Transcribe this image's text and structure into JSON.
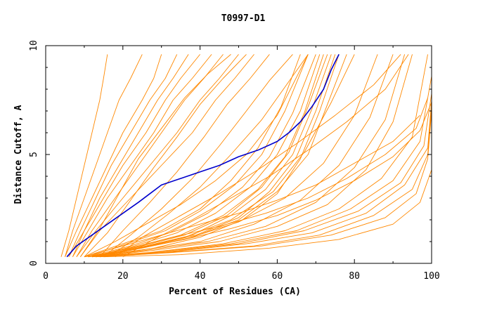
{
  "chart_data": {
    "type": "line",
    "title": "T0997-D1",
    "xlabel": "Percent of Residues (CA)",
    "ylabel": "Distance Cutoff, A",
    "xlim": [
      0,
      100
    ],
    "ylim": [
      0,
      10
    ],
    "x_ticks": [
      "0",
      "20",
      "40",
      "60",
      "80",
      "100"
    ],
    "y_ticks": [
      "0",
      "5",
      "10"
    ],
    "grid": false,
    "colors": {
      "highlight": "#0000cc",
      "others": "#ff8800",
      "frame": "#000000"
    },
    "highlight_series": {
      "x": [
        5.5,
        8,
        12,
        16,
        20,
        24,
        27,
        30,
        35,
        40,
        45,
        50,
        55,
        60,
        63,
        66,
        69,
        72,
        74,
        76
      ],
      "y": [
        0.3,
        0.8,
        1.3,
        1.8,
        2.3,
        2.8,
        3.2,
        3.6,
        3.9,
        4.2,
        4.5,
        4.9,
        5.2,
        5.6,
        6.0,
        6.5,
        7.2,
        8.0,
        8.9,
        9.6
      ]
    },
    "other_series": [
      {
        "x": [
          4,
          6,
          8,
          10,
          12,
          14,
          15,
          16
        ],
        "y": [
          0.3,
          1.5,
          3.0,
          4.5,
          6.0,
          7.5,
          8.5,
          9.6
        ]
      },
      {
        "x": [
          5,
          7,
          10,
          13,
          16,
          19,
          22,
          25
        ],
        "y": [
          0.3,
          1.5,
          3.0,
          4.5,
          6.0,
          7.5,
          8.5,
          9.6
        ]
      },
      {
        "x": [
          5,
          8,
          12,
          16,
          20,
          25,
          28,
          30
        ],
        "y": [
          0.3,
          1.5,
          3.0,
          4.5,
          6.0,
          7.5,
          8.5,
          9.6
        ]
      },
      {
        "x": [
          6,
          9,
          13,
          17,
          22,
          27,
          31,
          34
        ],
        "y": [
          0.3,
          1.5,
          3.0,
          4.5,
          6.0,
          7.5,
          8.5,
          9.6
        ]
      },
      {
        "x": [
          6,
          10,
          14,
          19,
          24,
          29,
          33,
          37
        ],
        "y": [
          0.3,
          1.5,
          3.0,
          4.5,
          6.0,
          7.5,
          8.5,
          9.6
        ]
      },
      {
        "x": [
          7,
          10,
          15,
          20,
          26,
          31,
          35,
          40
        ],
        "y": [
          0.3,
          1.5,
          3.0,
          4.5,
          6.0,
          7.5,
          8.5,
          9.6
        ]
      },
      {
        "x": [
          7,
          11,
          16,
          22,
          28,
          33,
          38,
          43
        ],
        "y": [
          0.3,
          1.5,
          3.0,
          4.5,
          6.0,
          7.5,
          8.5,
          9.6
        ]
      },
      {
        "x": [
          8,
          12,
          18,
          24,
          30,
          36,
          41,
          46
        ],
        "y": [
          0.3,
          1.5,
          3.0,
          4.5,
          6.0,
          7.5,
          8.5,
          9.6
        ]
      },
      {
        "x": [
          8,
          13,
          20,
          27,
          34,
          40,
          45,
          50
        ],
        "y": [
          0.3,
          1.5,
          3.0,
          4.5,
          6.0,
          7.5,
          8.5,
          9.6
        ]
      },
      {
        "x": [
          9,
          14,
          22,
          30,
          38,
          44,
          49,
          54
        ],
        "y": [
          0.3,
          1.5,
          3.0,
          4.5,
          6.0,
          7.5,
          8.5,
          9.6
        ]
      },
      {
        "x": [
          10,
          18,
          26,
          35,
          44,
          52,
          60,
          68
        ],
        "y": [
          0.3,
          1.0,
          1.8,
          2.7,
          3.8,
          5.0,
          6.8,
          9.6
        ]
      },
      {
        "x": [
          10,
          20,
          30,
          40,
          48,
          55,
          61,
          66
        ],
        "y": [
          0.3,
          0.9,
          1.5,
          2.5,
          3.8,
          5.3,
          7.2,
          9.6
        ]
      },
      {
        "x": [
          11,
          21,
          31,
          40,
          49,
          56,
          62,
          68
        ],
        "y": [
          0.3,
          0.9,
          1.5,
          2.4,
          3.6,
          5.0,
          7.0,
          9.6
        ]
      },
      {
        "x": [
          11,
          22,
          32,
          42,
          51,
          58,
          64,
          70
        ],
        "y": [
          0.3,
          0.8,
          1.4,
          2.3,
          3.5,
          4.9,
          6.9,
          9.6
        ]
      },
      {
        "x": [
          12,
          23,
          34,
          44,
          53,
          60,
          66,
          71
        ],
        "y": [
          0.3,
          0.8,
          1.4,
          2.3,
          3.5,
          5.0,
          7.0,
          9.6
        ]
      },
      {
        "x": [
          12,
          24,
          35,
          46,
          55,
          62,
          67,
          72
        ],
        "y": [
          0.3,
          0.8,
          1.3,
          2.2,
          3.4,
          4.9,
          6.9,
          9.6
        ]
      },
      {
        "x": [
          13,
          25,
          36,
          47,
          56,
          63,
          68,
          73
        ],
        "y": [
          0.3,
          0.8,
          1.3,
          2.2,
          3.5,
          5.1,
          7.2,
          9.6
        ]
      },
      {
        "x": [
          13,
          26,
          38,
          48,
          57,
          64,
          69,
          74
        ],
        "y": [
          0.3,
          0.8,
          1.3,
          2.2,
          3.4,
          5.0,
          7.1,
          9.6
        ]
      },
      {
        "x": [
          14,
          27,
          39,
          50,
          58,
          65,
          70,
          75
        ],
        "y": [
          0.3,
          0.8,
          1.3,
          2.1,
          3.3,
          4.9,
          7.0,
          9.6
        ]
      },
      {
        "x": [
          14,
          28,
          40,
          51,
          60,
          66,
          71,
          76
        ],
        "y": [
          0.3,
          0.7,
          1.2,
          2.0,
          3.2,
          4.8,
          7.0,
          9.6
        ]
      },
      {
        "x": [
          12,
          25,
          38,
          50,
          60,
          68,
          73,
          78
        ],
        "y": [
          0.3,
          0.7,
          1.2,
          2.0,
          3.3,
          5.0,
          7.3,
          9.6
        ]
      },
      {
        "x": [
          11,
          24,
          36,
          48,
          59,
          67,
          74,
          80
        ],
        "y": [
          0.3,
          0.7,
          1.2,
          2.0,
          3.3,
          5.1,
          7.4,
          9.6
        ]
      },
      {
        "x": [
          10,
          22,
          36,
          50,
          62,
          72,
          80,
          86
        ],
        "y": [
          0.3,
          0.6,
          1.1,
          1.9,
          3.0,
          4.6,
          6.8,
          9.6
        ]
      },
      {
        "x": [
          11,
          24,
          40,
          54,
          66,
          76,
          84,
          90
        ],
        "y": [
          0.3,
          0.6,
          1.0,
          1.8,
          2.9,
          4.5,
          6.7,
          9.6
        ]
      },
      {
        "x": [
          12,
          26,
          42,
          57,
          70,
          80,
          88,
          93
        ],
        "y": [
          0.3,
          0.6,
          1.0,
          1.7,
          2.8,
          4.4,
          6.6,
          9.6
        ]
      },
      {
        "x": [
          13,
          28,
          45,
          60,
          73,
          83,
          90,
          95
        ],
        "y": [
          0.3,
          0.6,
          1.0,
          1.7,
          2.7,
          4.3,
          6.5,
          9.6
        ]
      },
      {
        "x": [
          12,
          27,
          46,
          62,
          76,
          87,
          95,
          99
        ],
        "y": [
          0.3,
          0.5,
          0.9,
          1.5,
          2.5,
          3.9,
          5.8,
          9.6
        ]
      },
      {
        "x": [
          12,
          28,
          48,
          65,
          79,
          90,
          97,
          100
        ],
        "y": [
          0.3,
          0.5,
          0.9,
          1.5,
          2.5,
          3.8,
          5.6,
          8.6
        ]
      },
      {
        "x": [
          13,
          30,
          50,
          67,
          81,
          92,
          98,
          100
        ],
        "y": [
          0.3,
          0.5,
          0.9,
          1.5,
          2.4,
          3.7,
          5.4,
          7.8
        ]
      },
      {
        "x": [
          13,
          31,
          52,
          69,
          83,
          93,
          99,
          100
        ],
        "y": [
          0.3,
          0.5,
          0.9,
          1.4,
          2.3,
          3.6,
          5.3,
          7.5
        ]
      },
      {
        "x": [
          14,
          32,
          54,
          71,
          85,
          95,
          99,
          100
        ],
        "y": [
          0.3,
          0.5,
          0.8,
          1.3,
          2.2,
          3.4,
          5.0,
          7.2
        ]
      },
      {
        "x": [
          14,
          33,
          56,
          74,
          88,
          96,
          99,
          100
        ],
        "y": [
          0.3,
          0.5,
          0.8,
          1.3,
          2.1,
          3.2,
          4.8,
          7.0
        ]
      },
      {
        "x": [
          15,
          35,
          58,
          76,
          90,
          97,
          100,
          100
        ],
        "y": [
          0.3,
          0.4,
          0.7,
          1.1,
          1.8,
          2.8,
          4.3,
          6.0
        ]
      },
      {
        "x": [
          10,
          20,
          30,
          40,
          50,
          60,
          70,
          80,
          90,
          97
        ],
        "y": [
          0.3,
          0.8,
          1.3,
          1.8,
          2.3,
          2.9,
          3.6,
          4.6,
          5.6,
          6.8
        ]
      },
      {
        "x": [
          11,
          22,
          33,
          45,
          57,
          68,
          78,
          88,
          96,
          99
        ],
        "y": [
          0.3,
          0.7,
          1.2,
          1.7,
          2.3,
          3.0,
          3.9,
          5.0,
          6.2,
          7.6
        ]
      },
      {
        "x": [
          12,
          24,
          36,
          48,
          60,
          70,
          80,
          90,
          97,
          100
        ],
        "y": [
          0.3,
          0.7,
          1.1,
          1.6,
          2.2,
          2.9,
          3.8,
          4.9,
          6.1,
          7.4
        ]
      },
      {
        "x": [
          18,
          25,
          35,
          45,
          55,
          65,
          75,
          85,
          92
        ],
        "y": [
          0.3,
          1.2,
          2.2,
          3.2,
          4.3,
          5.5,
          6.8,
          8.2,
          9.6
        ]
      },
      {
        "x": [
          20,
          28,
          38,
          48,
          58,
          68,
          78,
          88,
          94
        ],
        "y": [
          0.3,
          1.1,
          2.0,
          3.0,
          4.0,
          5.2,
          6.5,
          8.0,
          9.6
        ]
      },
      {
        "x": [
          16,
          24,
          32,
          40,
          48,
          56,
          62,
          68
        ],
        "y": [
          0.3,
          1.2,
          2.3,
          3.5,
          5.0,
          6.6,
          8.1,
          9.6
        ]
      },
      {
        "x": [
          15,
          22,
          30,
          38,
          45,
          52,
          58,
          64
        ],
        "y": [
          0.3,
          1.3,
          2.5,
          3.9,
          5.4,
          7.0,
          8.4,
          9.6
        ]
      },
      {
        "x": [
          14,
          20,
          27,
          34,
          41,
          47,
          53,
          58
        ],
        "y": [
          0.3,
          1.5,
          2.8,
          4.2,
          5.8,
          7.3,
          8.5,
          9.6
        ]
      },
      {
        "x": [
          9,
          14,
          19,
          24,
          30,
          36,
          42,
          48
        ],
        "y": [
          0.3,
          1.6,
          3.2,
          4.8,
          6.2,
          7.6,
          8.7,
          9.6
        ]
      },
      {
        "x": [
          10,
          16,
          22,
          28,
          34,
          40,
          46,
          52
        ],
        "y": [
          0.3,
          1.4,
          2.9,
          4.4,
          5.8,
          7.3,
          8.5,
          9.6
        ]
      }
    ]
  }
}
